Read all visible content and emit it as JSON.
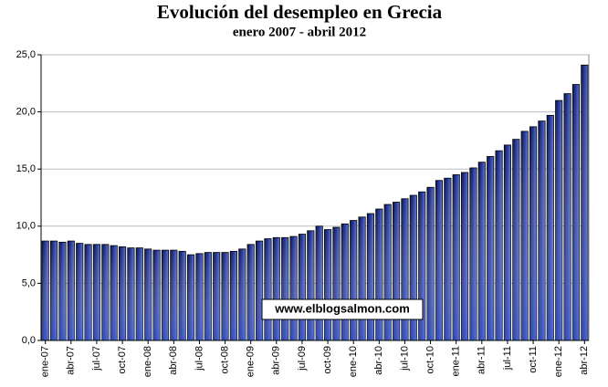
{
  "chart_data": {
    "type": "bar",
    "title": "Evolución del desempleo en Grecia",
    "subtitle": "enero 2007 - abril 2012",
    "annotation": "www.elblogsalmon.com",
    "categories": [
      "ene-07",
      null,
      null,
      "abr-07",
      null,
      null,
      "jul-07",
      null,
      null,
      "oct-07",
      null,
      null,
      "ene-08",
      null,
      null,
      "abr-08",
      null,
      null,
      "jul-08",
      null,
      null,
      "oct-08",
      null,
      null,
      "ene-09",
      null,
      null,
      "abr-09",
      null,
      null,
      "jul-09",
      null,
      null,
      "oct-09",
      null,
      null,
      "ene-10",
      null,
      null,
      "abr-10",
      null,
      null,
      "jul-10",
      null,
      null,
      "oct-10",
      null,
      null,
      "ene-11",
      null,
      null,
      "abr-11",
      null,
      null,
      "jul-11",
      null,
      null,
      "oct-11",
      null,
      null,
      "ene-12",
      null,
      null,
      "abr-12"
    ],
    "values": [
      8.7,
      8.7,
      8.6,
      8.7,
      8.5,
      8.4,
      8.4,
      8.4,
      8.3,
      8.2,
      8.1,
      8.1,
      8.0,
      7.9,
      7.9,
      7.9,
      7.8,
      7.5,
      7.6,
      7.7,
      7.7,
      7.7,
      7.8,
      8.0,
      8.4,
      8.7,
      8.9,
      9.0,
      9.0,
      9.1,
      9.3,
      9.6,
      10.0,
      9.7,
      9.9,
      10.2,
      10.5,
      10.8,
      11.1,
      11.5,
      11.9,
      12.1,
      12.4,
      12.7,
      13.0,
      13.4,
      14.0,
      14.2,
      14.5,
      14.7,
      15.1,
      15.6,
      16.1,
      16.6,
      17.1,
      17.6,
      18.3,
      18.7,
      19.2,
      19.7,
      21.0,
      21.6,
      22.4,
      24.1
    ],
    "color": "#1c2a7a",
    "ylim": [
      0,
      25
    ],
    "yticks": [
      {
        "value": 0,
        "label": "0,0"
      },
      {
        "value": 5,
        "label": "5,0"
      },
      {
        "value": 10,
        "label": "10,0"
      },
      {
        "value": 15,
        "label": "15,0"
      },
      {
        "value": 20,
        "label": "20,0"
      },
      {
        "value": 25,
        "label": "25,0"
      }
    ],
    "grid": true
  }
}
